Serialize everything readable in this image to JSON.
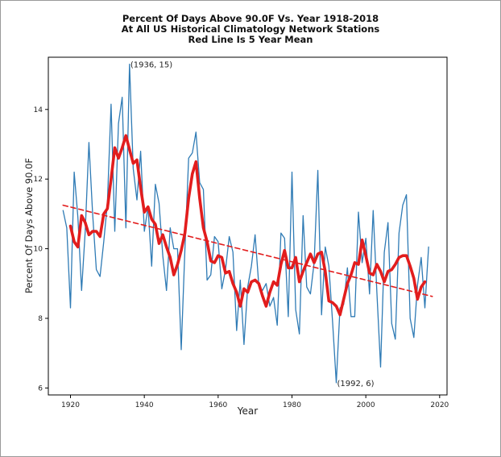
{
  "chart_data": {
    "type": "line",
    "title_lines": [
      "Percent Of Days Above 90.0F Vs. Year 1918-2018",
      "At All US Historical Climatology Network Stations",
      "Red Line Is 5 Year Mean"
    ],
    "xlabel": "Year",
    "ylabel": "Percent Of Days Above 90.0F",
    "xlim": [
      1914,
      2022
    ],
    "ylim": [
      5.8,
      15.5
    ],
    "xticks": [
      1920,
      1940,
      1960,
      1980,
      2000,
      2020
    ],
    "yticks": [
      6,
      8,
      10,
      12,
      14
    ],
    "grid": false,
    "annotations": [
      {
        "x": 1936,
        "y": 15.3,
        "text": "(1936, 15)"
      },
      {
        "x": 1992,
        "y": 6.15,
        "text": "(1992, 6)"
      }
    ],
    "series": [
      {
        "style": "annual",
        "color": "#2f7bb5",
        "x": [
          1918,
          1919,
          1920,
          1921,
          1922,
          1923,
          1924,
          1925,
          1926,
          1927,
          1928,
          1929,
          1930,
          1931,
          1932,
          1933,
          1934,
          1935,
          1936,
          1937,
          1938,
          1939,
          1940,
          1941,
          1942,
          1943,
          1944,
          1945,
          1946,
          1947,
          1948,
          1949,
          1950,
          1951,
          1952,
          1953,
          1954,
          1955,
          1956,
          1957,
          1958,
          1959,
          1960,
          1961,
          1962,
          1963,
          1964,
          1965,
          1966,
          1967,
          1968,
          1969,
          1970,
          1971,
          1972,
          1973,
          1974,
          1975,
          1976,
          1977,
          1978,
          1979,
          1980,
          1981,
          1982,
          1983,
          1984,
          1985,
          1986,
          1987,
          1988,
          1989,
          1990,
          1991,
          1992,
          1993,
          1994,
          1995,
          1996,
          1997,
          1998,
          1999,
          2000,
          2001,
          2002,
          2003,
          2004,
          2005,
          2006,
          2007,
          2008,
          2009,
          2010,
          2011,
          2012,
          2013,
          2014,
          2015,
          2016,
          2017,
          2018
        ],
        "y": [
          11.1,
          10.6,
          8.3,
          12.2,
          10.9,
          8.8,
          10.5,
          13.05,
          11.0,
          9.4,
          9.2,
          10.2,
          11.3,
          14.15,
          10.5,
          13.6,
          14.35,
          10.6,
          15.3,
          12.3,
          11.4,
          12.8,
          10.5,
          11.2,
          9.5,
          11.85,
          11.3,
          9.8,
          8.8,
          10.6,
          10.0,
          10.0,
          7.1,
          10.0,
          12.6,
          12.75,
          13.35,
          11.9,
          11.7,
          9.1,
          9.25,
          10.35,
          10.2,
          8.85,
          9.4,
          10.35,
          9.9,
          7.65,
          9.1,
          7.25,
          8.9,
          9.5,
          10.4,
          8.95,
          8.8,
          9.0,
          8.35,
          8.6,
          7.8,
          10.45,
          10.3,
          8.05,
          12.2,
          8.25,
          7.55,
          10.95,
          8.9,
          8.7,
          9.6,
          12.25,
          8.1,
          10.05,
          9.5,
          7.9,
          6.15,
          8.3,
          8.4,
          9.45,
          8.05,
          8.05,
          11.05,
          9.6,
          10.3,
          8.7,
          11.1,
          8.75,
          6.6,
          9.9,
          10.75,
          7.85,
          7.4,
          10.45,
          11.25,
          11.55,
          8.0,
          7.45,
          8.95,
          9.75,
          8.3,
          10.05,
          null
        ]
      },
      {
        "style": "5-year mean",
        "color": "#e21d1d",
        "x": [
          1920,
          1921,
          1922,
          1923,
          1924,
          1925,
          1926,
          1927,
          1928,
          1929,
          1930,
          1931,
          1932,
          1933,
          1934,
          1935,
          1936,
          1937,
          1938,
          1939,
          1940,
          1941,
          1942,
          1943,
          1944,
          1945,
          1946,
          1947,
          1948,
          1949,
          1950,
          1951,
          1952,
          1953,
          1954,
          1955,
          1956,
          1957,
          1958,
          1959,
          1960,
          1961,
          1962,
          1963,
          1964,
          1965,
          1966,
          1967,
          1968,
          1969,
          1970,
          1971,
          1972,
          1973,
          1974,
          1975,
          1976,
          1977,
          1978,
          1979,
          1980,
          1981,
          1982,
          1983,
          1984,
          1985,
          1986,
          1987,
          1988,
          1989,
          1990,
          1991,
          1992,
          1993,
          1994,
          1995,
          1996,
          1997,
          1998,
          1999,
          2000,
          2001,
          2002,
          2003,
          2004,
          2005,
          2006,
          2007,
          2008,
          2009,
          2010,
          2011,
          2012,
          2013,
          2014,
          2015,
          2016
        ],
        "y": [
          10.65,
          10.2,
          10.05,
          10.95,
          10.75,
          10.4,
          10.5,
          10.5,
          10.35,
          11.0,
          11.15,
          12.0,
          12.9,
          12.6,
          12.9,
          13.25,
          12.85,
          12.45,
          12.55,
          11.75,
          11.05,
          11.2,
          10.85,
          10.7,
          10.15,
          10.4,
          10.05,
          9.75,
          9.25,
          9.55,
          9.95,
          10.45,
          11.45,
          12.15,
          12.5,
          11.45,
          10.6,
          10.2,
          9.65,
          9.6,
          9.8,
          9.75,
          9.3,
          9.35,
          9.0,
          8.75,
          8.35,
          8.85,
          8.75,
          9.05,
          9.1,
          9.0,
          8.65,
          8.35,
          8.75,
          9.05,
          8.95,
          9.55,
          9.95,
          9.45,
          9.45,
          9.75,
          9.05,
          9.35,
          9.6,
          9.85,
          9.6,
          9.85,
          9.9,
          9.35,
          8.5,
          8.45,
          8.35,
          8.1,
          8.55,
          9.0,
          9.25,
          9.6,
          9.55,
          10.25,
          9.8,
          9.3,
          9.25,
          9.55,
          9.35,
          9.05,
          9.35,
          9.4,
          9.55,
          9.75,
          9.8,
          9.8,
          9.5,
          9.15,
          8.55,
          8.9,
          9.05
        ]
      },
      {
        "style": "linear trend",
        "color": "#e21d1d",
        "x": [
          1918,
          2018
        ],
        "y": [
          11.25,
          8.63
        ]
      }
    ]
  }
}
